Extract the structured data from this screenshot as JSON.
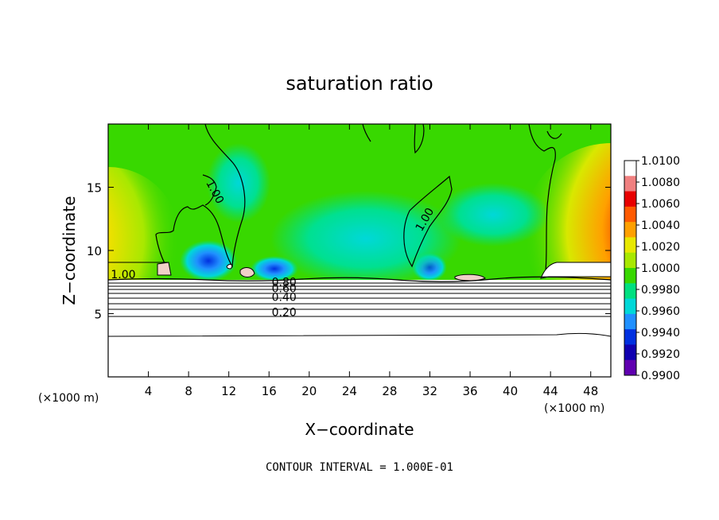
{
  "chart_data": {
    "type": "heatmap",
    "title": "saturation ratio",
    "xlabel": "X−coordinate",
    "ylabel": "Z−coordinate",
    "x_unit_left": "(×1000 m)",
    "x_unit_right": "(×1000 m)",
    "xlim": [
      0,
      50
    ],
    "ylim": [
      0,
      20
    ],
    "x_ticks": [
      4,
      8,
      12,
      16,
      20,
      24,
      28,
      32,
      36,
      40,
      44,
      48
    ],
    "y_ticks": [
      5,
      10,
      15
    ],
    "colorbar": {
      "min": 0.99,
      "max": 1.01,
      "labels": [
        "1.0100",
        "1.0080",
        "1.0060",
        "1.0040",
        "1.0020",
        "1.0000",
        "0.9980",
        "0.9960",
        "0.9940",
        "0.9920",
        "0.9900"
      ],
      "colors": [
        "#ffffff",
        "#f08080",
        "#e80000",
        "#ff5a00",
        "#ffa000",
        "#e8e800",
        "#a8e800",
        "#38d800",
        "#00e080",
        "#00d8d8",
        "#2090ff",
        "#0030e0",
        "#1000b0",
        "#6000b0"
      ]
    },
    "contour_labels": [
      {
        "text": "1.00",
        "x": 1.5,
        "z": 7.8
      },
      {
        "text": "1.00",
        "x": 10.3,
        "z": 14.5
      },
      {
        "text": "1.00",
        "x": 31.8,
        "z": 12.3
      },
      {
        "text": "0.80",
        "x": 17.5,
        "z": 7.2
      },
      {
        "text": "0.60",
        "x": 17.5,
        "z": 6.7
      },
      {
        "text": "0.40",
        "x": 17.5,
        "z": 6.0
      },
      {
        "text": "0.20",
        "x": 17.5,
        "z": 4.8
      }
    ],
    "contour_interval_text": "CONTOUR INTERVAL =  1.000E-01"
  }
}
